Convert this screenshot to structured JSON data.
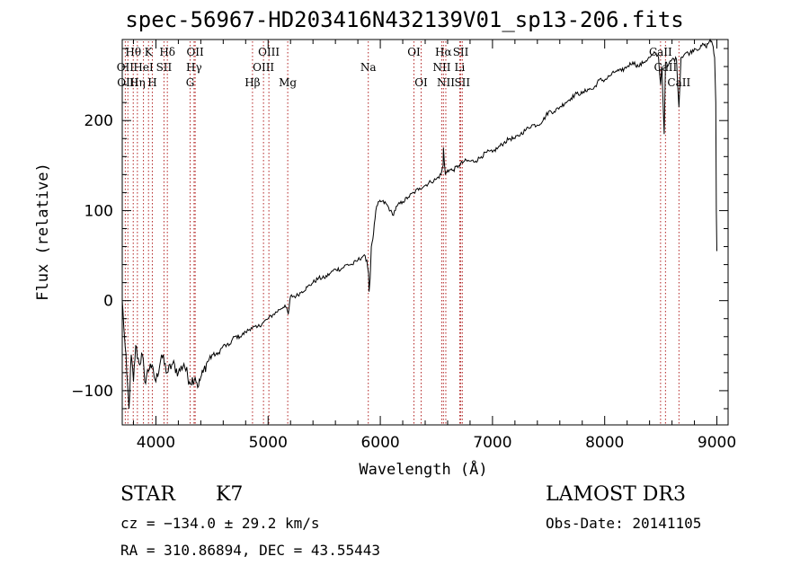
{
  "chart_data": {
    "type": "line",
    "title": "spec-56967-HD203416N432139V01_sp13-206.fits",
    "xlabel": "Wavelength (Å)",
    "ylabel": "Flux (relative)",
    "xlim": [
      3700,
      9100
    ],
    "ylim": [
      -138,
      290
    ],
    "xticks": [
      4000,
      5000,
      6000,
      7000,
      8000,
      9000
    ],
    "yticks": [
      -100,
      0,
      100,
      200
    ],
    "grid": false,
    "series": [
      {
        "name": "flux",
        "x": [
          3700,
          3720,
          3740,
          3760,
          3780,
          3800,
          3820,
          3850,
          3880,
          3900,
          3950,
          4000,
          4050,
          4100,
          4150,
          4200,
          4250,
          4300,
          4350,
          4380,
          4400,
          4420,
          4450,
          4500,
          4550,
          4600,
          4650,
          4700,
          4750,
          4800,
          4850,
          4900,
          4950,
          5000,
          5050,
          5100,
          5150,
          5180,
          5200,
          5250,
          5300,
          5350,
          5400,
          5450,
          5500,
          5550,
          5600,
          5650,
          5700,
          5750,
          5800,
          5850,
          5880,
          5895,
          5900,
          5910,
          5920,
          5940,
          5960,
          5990,
          6010,
          6050,
          6090,
          6110,
          6150,
          6200,
          6250,
          6300,
          6350,
          6400,
          6450,
          6500,
          6540,
          6560,
          6563,
          6570,
          6580,
          6600,
          6650,
          6700,
          6750,
          6800,
          6850,
          6900,
          6950,
          7000,
          7050,
          7100,
          7150,
          7200,
          7250,
          7300,
          7350,
          7400,
          7450,
          7500,
          7550,
          7600,
          7650,
          7700,
          7750,
          7800,
          7850,
          7900,
          7950,
          8000,
          8050,
          8100,
          8150,
          8200,
          8250,
          8300,
          8350,
          8400,
          8450,
          8480,
          8498,
          8510,
          8530,
          8542,
          8560,
          8600,
          8640,
          8662,
          8680,
          8720,
          8760,
          8800,
          8850,
          8880,
          8900,
          8920,
          8940,
          8960,
          8980,
          8990,
          8995,
          9000
        ],
        "values": [
          0,
          -40,
          -80,
          -120,
          -60,
          -90,
          -50,
          -70,
          -60,
          -90,
          -70,
          -90,
          -60,
          -80,
          -70,
          -80,
          -70,
          -90,
          -85,
          -95,
          -85,
          -80,
          -70,
          -60,
          -60,
          -50,
          -50,
          -40,
          -40,
          -35,
          -30,
          -30,
          -25,
          -20,
          -15,
          -10,
          -5,
          -15,
          5,
          5,
          10,
          15,
          20,
          25,
          25,
          30,
          35,
          35,
          40,
          40,
          45,
          50,
          45,
          30,
          10,
          25,
          60,
          75,
          100,
          110,
          110,
          108,
          100,
          95,
          105,
          110,
          115,
          120,
          125,
          128,
          132,
          135,
          140,
          150,
          170,
          155,
          140,
          145,
          145,
          150,
          155,
          155,
          155,
          160,
          165,
          165,
          170,
          175,
          180,
          180,
          185,
          190,
          195,
          195,
          200,
          210,
          210,
          215,
          220,
          225,
          230,
          230,
          235,
          235,
          245,
          245,
          250,
          255,
          255,
          260,
          265,
          260,
          265,
          270,
          275,
          270,
          240,
          260,
          185,
          265,
          260,
          268,
          268,
          215,
          270,
          275,
          275,
          280,
          280,
          285,
          282,
          285,
          290,
          285,
          270,
          220,
          100,
          55
        ]
      }
    ],
    "line_markers": [
      {
        "label": "Hθ",
        "x": 3798,
        "row": 1
      },
      {
        "label": "K",
        "x": 3934,
        "row": 1
      },
      {
        "label": "Hδ",
        "x": 4102,
        "row": 1
      },
      {
        "label": "OII",
        "x": 4350,
        "row": 1
      },
      {
        "label": "OIII",
        "x": 5007,
        "row": 1
      },
      {
        "label": "OI",
        "x": 6300,
        "row": 1
      },
      {
        "label": "Hα",
        "x": 6563,
        "row": 1
      },
      {
        "label": "SII",
        "x": 6717,
        "row": 1
      },
      {
        "label": "CaII",
        "x": 8498,
        "row": 1
      },
      {
        "label": "OII",
        "x": 3727,
        "row": 2
      },
      {
        "label": "HeI",
        "x": 3889,
        "row": 2
      },
      {
        "label": "SII",
        "x": 4072,
        "row": 2
      },
      {
        "label": "Hγ",
        "x": 4340,
        "row": 2
      },
      {
        "label": "OIII",
        "x": 4959,
        "row": 2
      },
      {
        "label": "Na",
        "x": 5893,
        "row": 2
      },
      {
        "label": "NII",
        "x": 6548,
        "row": 2
      },
      {
        "label": "Li",
        "x": 6708,
        "row": 2
      },
      {
        "label": "CaII",
        "x": 8542,
        "row": 2
      },
      {
        "label": "OIII",
        "x": 3750,
        "row": 3
      },
      {
        "label": "Hη",
        "x": 3835,
        "row": 3
      },
      {
        "label": "H",
        "x": 3968,
        "row": 3
      },
      {
        "label": "G",
        "x": 4305,
        "row": 3
      },
      {
        "label": "Hβ",
        "x": 4861,
        "row": 3
      },
      {
        "label": "Mg",
        "x": 5175,
        "row": 3
      },
      {
        "label": "OI",
        "x": 6364,
        "row": 3
      },
      {
        "label": "NII",
        "x": 6584,
        "row": 3
      },
      {
        "label": "SII",
        "x": 6731,
        "row": 3
      },
      {
        "label": "CaII",
        "x": 8662,
        "row": 3
      }
    ],
    "marker_color": "#b22222"
  },
  "info": {
    "class_label": "STAR",
    "subclass": "K7",
    "survey": "LAMOST DR3",
    "redshift_line": "cz = −134.0 ± 29.2 km/s",
    "obs_date": "Obs-Date: 20141105",
    "coords": "RA = 310.86894, DEC =  43.55443"
  }
}
